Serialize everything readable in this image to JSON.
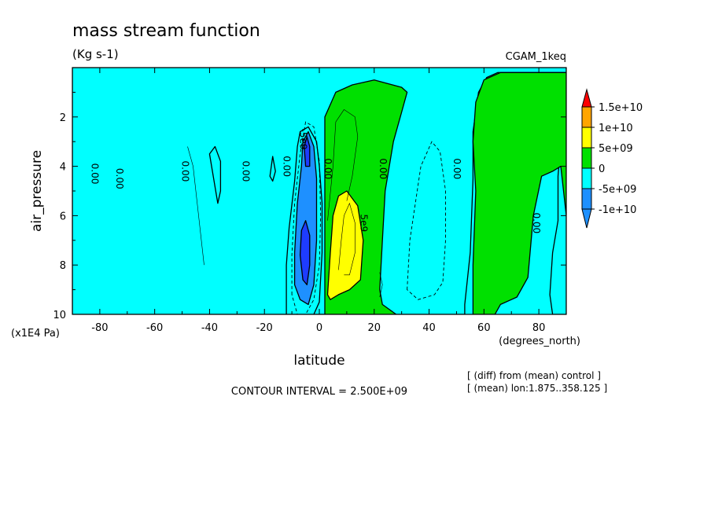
{
  "chart_data": {
    "type": "heatmap",
    "title": "mass stream function",
    "subtitle": "(Kg s-1)",
    "dataset_label": "CGAM_1keq",
    "xlabel": "latitude",
    "xunits": "(degrees_north)",
    "ylabel": "air_pressure",
    "yunits": "(x1E4 Pa)",
    "xlim": [
      -90,
      90
    ],
    "ylim": [
      0,
      10
    ],
    "y_inverted": true,
    "x_ticks": [
      -80,
      -60,
      -40,
      -20,
      0,
      20,
      40,
      60,
      80
    ],
    "y_ticks": [
      2,
      4,
      6,
      8,
      10
    ],
    "contour_interval_text": "CONTOUR INTERVAL = 2.500E+09",
    "notes": [
      "[ (diff) from (mean) control ]",
      "[ (mean) lon:1.875..358.125 ]"
    ],
    "colorbar": {
      "levels": [
        "1.5e+10",
        "1e+10",
        "5e+09",
        "0",
        "-5e+09",
        "-1e+10"
      ],
      "colors": [
        "#ff0000",
        "#ffa500",
        "#ffff00",
        "#00e000",
        "#00ffff",
        "#1e90ff",
        "#1e3cff"
      ],
      "top_color": "#ff0000",
      "bottom_color": "#1e90ff"
    },
    "contour_labels": [
      {
        "text": "0.00",
        "x": -82,
        "y": 4.3
      },
      {
        "text": "0.00",
        "x": -73,
        "y": 4.5
      },
      {
        "text": "0.00",
        "x": -49,
        "y": 4.2
      },
      {
        "text": "0.00",
        "x": -27,
        "y": 4.2
      },
      {
        "text": "0.00",
        "x": -12,
        "y": 4.0
      },
      {
        "text": "0.00",
        "x": 3,
        "y": 4.1
      },
      {
        "text": "0.00",
        "x": 23,
        "y": 4.1
      },
      {
        "text": "0.00",
        "x": 50,
        "y": 4.1
      },
      {
        "text": "0.00",
        "x": 79,
        "y": 6.3
      },
      {
        "text": "5e9",
        "x": 16,
        "y": 6.3
      },
      {
        "text": "-5e9",
        "x": -6,
        "y": 2.9
      }
    ],
    "regions": [
      {
        "value_class": "0..5e+09",
        "color": "#00e000",
        "polygon": [
          [
            -90,
            0.2
          ],
          [
            -84,
            0.1
          ],
          [
            -78,
            0.2
          ],
          [
            -72,
            0.4
          ],
          [
            -68,
            0.5
          ],
          [
            -62,
            0.7
          ],
          [
            -58,
            0.6
          ],
          [
            -52,
            0.4
          ],
          [
            -46,
            0.6
          ],
          [
            -40,
            0.9
          ],
          [
            -34,
            1.0
          ],
          [
            -30,
            1.5
          ],
          [
            -26,
            2.0
          ],
          [
            -22,
            2.5
          ],
          [
            -18,
            3.0
          ],
          [
            -14,
            4.4
          ],
          [
            -12,
            6.0
          ],
          [
            -12,
            8.0
          ],
          [
            -14,
            9.5
          ],
          [
            -16,
            10
          ],
          [
            -90,
            10
          ]
        ]
      },
      {
        "value_class": "-5e+09..0",
        "color": "#00ffff",
        "polygon": [
          [
            -86,
            10
          ],
          [
            -86,
            1.6
          ],
          [
            -82,
            0.5
          ],
          [
            -76,
            0.7
          ],
          [
            -72,
            2.5
          ],
          [
            -70,
            3.8
          ],
          [
            -70,
            6.5
          ],
          [
            -68,
            7.8
          ],
          [
            -62,
            9.0
          ],
          [
            -56,
            9.6
          ],
          [
            -54,
            10
          ]
        ]
      },
      {
        "value_class": "-5e+09..0",
        "color": "#00ffff",
        "polygon": [
          [
            -57,
            0.8
          ],
          [
            -52,
            0.6
          ],
          [
            -46,
            1.0
          ],
          [
            -40,
            1.4
          ],
          [
            -34,
            2.2
          ],
          [
            -30,
            2.8
          ],
          [
            -26,
            4.0
          ],
          [
            -24,
            6.0
          ],
          [
            -24,
            8.5
          ],
          [
            -22,
            9.8
          ],
          [
            -22,
            10
          ],
          [
            -46,
            10
          ],
          [
            -50,
            9.6
          ],
          [
            -52,
            7.5
          ],
          [
            -53,
            5.0
          ],
          [
            -54,
            3.0
          ]
        ]
      },
      {
        "value_class": "0..5e+09",
        "color": "#00e000",
        "polygon": [
          [
            -52,
            2.5
          ],
          [
            -48,
            2.8
          ],
          [
            -45,
            3.2
          ],
          [
            -42,
            4.4
          ],
          [
            -40,
            6.0
          ],
          [
            -40,
            7.5
          ],
          [
            -43,
            8.0
          ],
          [
            -46,
            6.5
          ],
          [
            -48,
            5.0
          ],
          [
            -51,
            3.8
          ]
        ]
      },
      {
        "value_class": "-5e+09..0",
        "color": "#00ffff",
        "polygon": [
          [
            -90,
            10
          ],
          [
            -90,
            0
          ],
          [
            90,
            0
          ],
          [
            90,
            10
          ],
          [
            85,
            10
          ],
          [
            84,
            9.2
          ],
          [
            85,
            7.5
          ],
          [
            87,
            6.2
          ],
          [
            87,
            4.4
          ],
          [
            88,
            3.0
          ],
          [
            89,
            1.0
          ],
          [
            90,
            0.2
          ],
          [
            65,
            0.2
          ],
          [
            61,
            0.4
          ],
          [
            58,
            1.0
          ],
          [
            56,
            2.6
          ],
          [
            56,
            4.5
          ],
          [
            55,
            7.5
          ],
          [
            53,
            9.6
          ],
          [
            53,
            10
          ]
        ]
      },
      {
        "value_class": "0..5e+09",
        "color": "#00e000",
        "polygon": [
          [
            2,
            10
          ],
          [
            2,
            2.0
          ],
          [
            6,
            1.0
          ],
          [
            12,
            0.7
          ],
          [
            20,
            0.5
          ],
          [
            30,
            0.8
          ],
          [
            32,
            1.0
          ],
          [
            30,
            1.8
          ],
          [
            27,
            3.0
          ],
          [
            24,
            5.0
          ],
          [
            23,
            7.0
          ],
          [
            22,
            9.0
          ],
          [
            23,
            9.6
          ],
          [
            28,
            10
          ]
        ]
      },
      {
        "value_class": "0..5e+09",
        "color": "#00e000",
        "polygon": [
          [
            56,
            10
          ],
          [
            56,
            8.0
          ],
          [
            57,
            5.0
          ],
          [
            56,
            3.0
          ],
          [
            57,
            1.4
          ],
          [
            60,
            0.5
          ],
          [
            66,
            0.2
          ],
          [
            90,
            0.2
          ],
          [
            90,
            6.0
          ],
          [
            88,
            4.0
          ],
          [
            85,
            4.2
          ],
          [
            81,
            4.4
          ],
          [
            78,
            6.0
          ],
          [
            76,
            8.5
          ],
          [
            72,
            9.3
          ],
          [
            66,
            9.6
          ],
          [
            64,
            10
          ]
        ]
      },
      {
        "value_class": "-5e+09..0",
        "color": "#00ffff",
        "polygon": [
          [
            -12,
            10
          ],
          [
            -12,
            8.0
          ],
          [
            -11,
            6.5
          ],
          [
            -9,
            4.6
          ],
          [
            -8,
            3.2
          ],
          [
            -7,
            2.6
          ],
          [
            -4,
            2.4
          ],
          [
            -1,
            3.0
          ],
          [
            0,
            4.0
          ],
          [
            1,
            5.5
          ],
          [
            1,
            7.5
          ],
          [
            0,
            9.5
          ],
          [
            -2,
            10
          ]
        ]
      },
      {
        "value_class": "-1e+10..-5e+09",
        "color": "#1e90ff",
        "polygon": [
          [
            -9,
            8.8
          ],
          [
            -9,
            7.5
          ],
          [
            -8,
            5.5
          ],
          [
            -6.5,
            4.0
          ],
          [
            -6,
            3.0
          ],
          [
            -4,
            2.6
          ],
          [
            -2,
            3.2
          ],
          [
            -1,
            4.5
          ],
          [
            -1,
            7.0
          ],
          [
            -2,
            8.8
          ],
          [
            -4,
            9.6
          ],
          [
            -7,
            9.4
          ]
        ]
      },
      {
        "value_class": "< -1e+10",
        "color": "#1e3cff",
        "polygon": [
          [
            -6,
            8.6
          ],
          [
            -7,
            7.6
          ],
          [
            -6.5,
            6.6
          ],
          [
            -5,
            6.2
          ],
          [
            -3.5,
            6.8
          ],
          [
            -3.5,
            8.0
          ],
          [
            -4.5,
            8.8
          ]
        ]
      },
      {
        "value_class": "< -1e+10",
        "color": "#1e3cff",
        "polygon": [
          [
            -5,
            4.0
          ],
          [
            -5.5,
            3.2
          ],
          [
            -4.5,
            2.8
          ],
          [
            -3.5,
            3.2
          ],
          [
            -3.5,
            4.0
          ]
        ]
      },
      {
        "value_class": "5e+09..1e+10",
        "color": "#ffff00",
        "polygon": [
          [
            3,
            9.2
          ],
          [
            4,
            7.5
          ],
          [
            5,
            6.0
          ],
          [
            7,
            5.2
          ],
          [
            10,
            5.0
          ],
          [
            14,
            5.6
          ],
          [
            16,
            7.0
          ],
          [
            15,
            8.6
          ],
          [
            11,
            9.0
          ],
          [
            7,
            9.2
          ],
          [
            4,
            9.4
          ]
        ]
      },
      {
        "value_class": "-5e+09..0",
        "color": "#00ffff",
        "polygon": [
          [
            -40,
            3.5
          ],
          [
            -38,
            3.2
          ],
          [
            -36,
            3.8
          ],
          [
            -36,
            5.0
          ],
          [
            -37,
            5.5
          ]
        ]
      },
      {
        "value_class": "-5e+09..0",
        "color": "#00ffff",
        "polygon": [
          [
            -18,
            4.4
          ],
          [
            -17,
            3.6
          ],
          [
            -16,
            4.2
          ],
          [
            -17,
            4.6
          ]
        ]
      }
    ],
    "dashed_contours": [
      [
        [
          -10,
          9.2
        ],
        [
          -10,
          7.6
        ],
        [
          -9,
          5.5
        ],
        [
          -7,
          3.5
        ],
        [
          -5,
          2.2
        ],
        [
          -2,
          2.4
        ],
        [
          0,
          3.8
        ],
        [
          0.5,
          6.0
        ],
        [
          0,
          8.0
        ],
        [
          -2,
          9.4
        ],
        [
          -5,
          10
        ],
        [
          -8,
          10
        ]
      ],
      [
        [
          32,
          9.0
        ],
        [
          33,
          7.0
        ],
        [
          37,
          4.0
        ],
        [
          41,
          3.0
        ],
        [
          44,
          3.4
        ],
        [
          46,
          5.0
        ],
        [
          46,
          7.0
        ],
        [
          45,
          8.7
        ],
        [
          42,
          9.2
        ],
        [
          36,
          9.4
        ]
      ]
    ],
    "solid_contours": [
      [
        [
          -42,
          8.0
        ],
        [
          -44,
          6.0
        ],
        [
          -46,
          4.0
        ],
        [
          -48,
          3.2
        ]
      ],
      [
        [
          7,
          8.2
        ],
        [
          8,
          7.0
        ],
        [
          9,
          6.0
        ],
        [
          11,
          5.5
        ],
        [
          13,
          6.3
        ],
        [
          13,
          7.5
        ],
        [
          11,
          8.4
        ],
        [
          9,
          8.4
        ]
      ],
      [
        [
          3,
          6.2
        ],
        [
          5,
          4.0
        ],
        [
          6,
          2.2
        ],
        [
          9,
          1.7
        ],
        [
          13,
          2.0
        ],
        [
          14,
          2.8
        ],
        [
          12,
          4.4
        ],
        [
          10,
          5.4
        ]
      ],
      [
        [
          22,
          8.3
        ],
        [
          23,
          8.8
        ],
        [
          22,
          9.3
        ]
      ]
    ]
  }
}
